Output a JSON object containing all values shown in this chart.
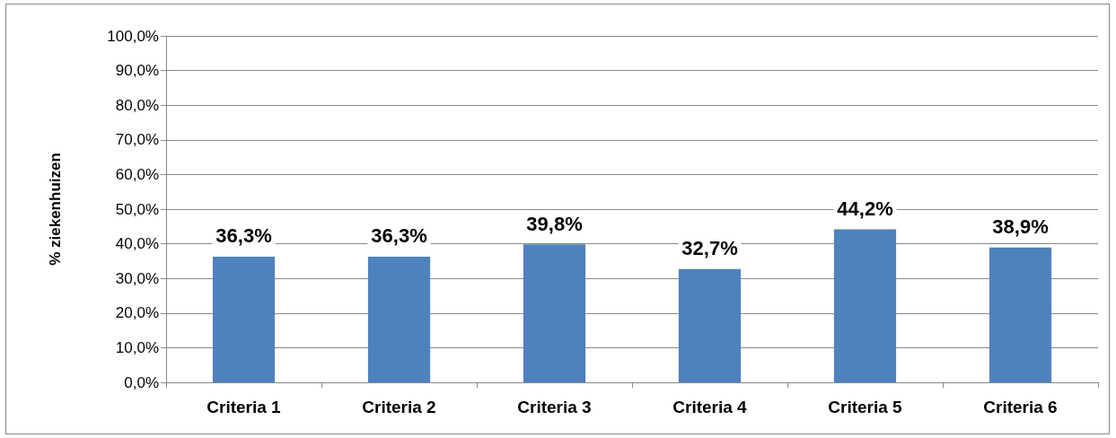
{
  "chart_data": {
    "type": "bar",
    "ylabel": "% ziekenhuizen",
    "categories": [
      "Criteria 1",
      "Criteria 2",
      "Criteria 3",
      "Criteria 4",
      "Criteria 5",
      "Criteria 6"
    ],
    "values": [
      36.3,
      36.3,
      39.8,
      32.7,
      44.2,
      38.9
    ],
    "value_labels": [
      "36,3%",
      "36,3%",
      "39,8%",
      "32,7%",
      "44,2%",
      "38,9%"
    ],
    "color": "#4f81bd",
    "ylim": [
      0,
      100
    ],
    "yticks": [
      {
        "value": 0,
        "label": "0,0%"
      },
      {
        "value": 10,
        "label": "10,0%"
      },
      {
        "value": 20,
        "label": "20,0%"
      },
      {
        "value": 30,
        "label": "30,0%"
      },
      {
        "value": 40,
        "label": "40,0%"
      },
      {
        "value": 50,
        "label": "50,0%"
      },
      {
        "value": 60,
        "label": "60,0%"
      },
      {
        "value": 70,
        "label": "70,0%"
      },
      {
        "value": 80,
        "label": "80,0%"
      },
      {
        "value": 90,
        "label": "90,0%"
      },
      {
        "value": 100,
        "label": "100,0%"
      }
    ],
    "grid": "y"
  }
}
